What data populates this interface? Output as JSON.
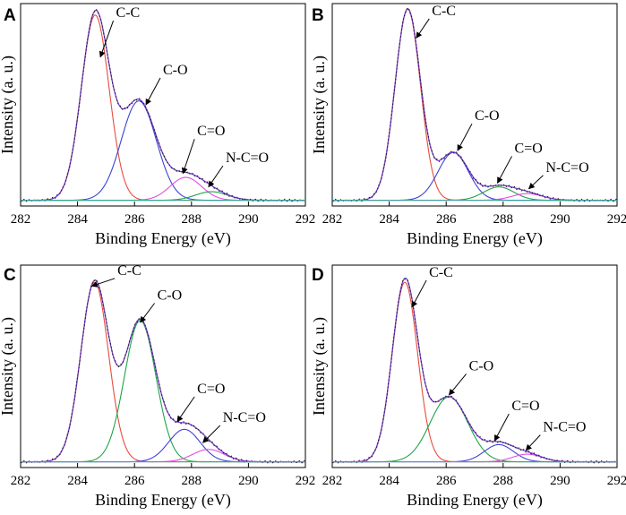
{
  "chart_data": [
    {
      "panel": "A",
      "type": "line",
      "xlabel": "Binding Energy (eV)",
      "ylabel": "Intensity (a. u.)",
      "xlim": [
        282,
        292
      ],
      "ylim": [
        0,
        1.06
      ],
      "xticks": [
        282,
        284,
        286,
        288,
        290,
        292
      ],
      "baseline": 0.03,
      "peaks": [
        {
          "name": "C-C",
          "center": 284.62,
          "fwhm": 1.15,
          "height": 0.97,
          "color": "#e74c3c"
        },
        {
          "name": "C-O",
          "center": 286.15,
          "fwhm": 1.45,
          "height": 0.52,
          "color": "#3a43d6"
        },
        {
          "name": "C=O",
          "center": 287.8,
          "fwhm": 1.3,
          "height": 0.12,
          "color": "#e24ee2"
        },
        {
          "name": "N-C=O",
          "center": 288.7,
          "fwhm": 1.3,
          "height": 0.045,
          "color": "#1fa34a"
        }
      ],
      "envelope_color": "#7a3fcf",
      "series": [
        {
          "name": "C-C",
          "x": [
            283,
            284,
            284.6,
            285.2,
            286
          ],
          "values": [
            0.08,
            0.72,
            1.0,
            0.72,
            0.12
          ]
        },
        {
          "name": "C-O",
          "x": [
            285,
            286.2,
            287.4
          ],
          "values": [
            0.12,
            0.55,
            0.12
          ]
        },
        {
          "name": "C=O",
          "x": [
            287,
            287.8,
            288.6
          ],
          "values": [
            0.04,
            0.15,
            0.04
          ]
        },
        {
          "name": "N-C=O",
          "x": [
            288,
            288.7,
            289.5
          ],
          "values": [
            0.03,
            0.075,
            0.03
          ]
        }
      ],
      "annotations": [
        {
          "text": "C-C",
          "target": [
            284.8,
            0.78
          ],
          "label_at": [
            285.35,
            0.98
          ]
        },
        {
          "text": "C-O",
          "target": [
            286.4,
            0.53
          ],
          "label_at": [
            287.0,
            0.68
          ]
        },
        {
          "text": "C=O",
          "target": [
            287.7,
            0.17
          ],
          "label_at": [
            288.2,
            0.36
          ]
        },
        {
          "text": "N-C=O",
          "target": [
            288.6,
            0.1
          ],
          "label_at": [
            289.2,
            0.22
          ]
        }
      ]
    },
    {
      "panel": "B",
      "type": "line",
      "xlabel": "Binding Energy (eV)",
      "ylabel": "Intensity (a. u.)",
      "xlim": [
        282,
        292
      ],
      "ylim": [
        0,
        1.06
      ],
      "xticks": [
        282,
        284,
        286,
        288,
        290,
        292
      ],
      "baseline": 0.03,
      "peaks": [
        {
          "name": "C-C",
          "center": 284.65,
          "fwhm": 1.05,
          "height": 1.0,
          "color": "#e74c3c"
        },
        {
          "name": "C-O",
          "center": 286.25,
          "fwhm": 1.25,
          "height": 0.25,
          "color": "#3a43d6"
        },
        {
          "name": "C=O",
          "center": 287.85,
          "fwhm": 1.25,
          "height": 0.07,
          "color": "#1fa34a"
        },
        {
          "name": "N-C=O",
          "center": 288.85,
          "fwhm": 1.25,
          "height": 0.035,
          "color": "#e24ee2"
        }
      ],
      "envelope_color": "#7a3fcf",
      "series": [
        {
          "name": "C-C",
          "x": [
            283,
            284,
            284.65,
            285.3,
            286
          ],
          "values": [
            0.06,
            0.7,
            1.03,
            0.7,
            0.1
          ]
        },
        {
          "name": "C-O",
          "x": [
            285.3,
            286.25,
            287.2
          ],
          "values": [
            0.08,
            0.28,
            0.08
          ]
        },
        {
          "name": "C=O",
          "x": [
            287,
            287.85,
            288.7
          ],
          "values": [
            0.04,
            0.1,
            0.04
          ]
        },
        {
          "name": "N-C=O",
          "x": [
            288,
            288.85,
            289.7
          ],
          "values": [
            0.03,
            0.065,
            0.03
          ]
        }
      ],
      "annotations": [
        {
          "text": "C-C",
          "target": [
            284.95,
            0.88
          ],
          "label_at": [
            285.5,
            0.99
          ]
        },
        {
          "text": "C-O",
          "target": [
            286.4,
            0.29
          ],
          "label_at": [
            287.0,
            0.44
          ]
        },
        {
          "text": "C=O",
          "target": [
            287.8,
            0.12
          ],
          "label_at": [
            288.4,
            0.27
          ]
        },
        {
          "text": "N-C=O",
          "target": [
            288.9,
            0.09
          ],
          "label_at": [
            289.5,
            0.17
          ]
        }
      ]
    },
    {
      "panel": "C",
      "type": "line",
      "xlabel": "Binding Energy (eV)",
      "ylabel": "Intensity (a. u.)",
      "xlim": [
        282,
        292
      ],
      "ylim": [
        0,
        1.06
      ],
      "xticks": [
        282,
        284,
        286,
        288,
        290,
        292
      ],
      "baseline": 0.03,
      "peaks": [
        {
          "name": "C-C",
          "center": 284.6,
          "fwhm": 1.15,
          "height": 0.94,
          "color": "#e74c3c"
        },
        {
          "name": "C-O",
          "center": 286.2,
          "fwhm": 1.3,
          "height": 0.74,
          "color": "#1fa34a"
        },
        {
          "name": "C=O",
          "center": 287.75,
          "fwhm": 1.3,
          "height": 0.17,
          "color": "#3a43d6"
        },
        {
          "name": "N-C=O",
          "center": 288.6,
          "fwhm": 1.3,
          "height": 0.065,
          "color": "#e24ee2"
        }
      ],
      "envelope_color": "#7a3fcf",
      "series": [
        {
          "name": "C-C",
          "x": [
            283,
            284,
            284.6,
            285.2,
            286
          ],
          "values": [
            0.08,
            0.72,
            0.97,
            0.72,
            0.12
          ]
        },
        {
          "name": "C-O",
          "x": [
            285,
            286.2,
            287.4
          ],
          "values": [
            0.15,
            0.77,
            0.15
          ]
        },
        {
          "name": "C=O",
          "x": [
            287,
            287.75,
            288.5
          ],
          "values": [
            0.05,
            0.2,
            0.05
          ]
        },
        {
          "name": "N-C=O",
          "x": [
            288,
            288.6,
            289.3
          ],
          "values": [
            0.03,
            0.095,
            0.03
          ]
        }
      ],
      "annotations": [
        {
          "text": "C-C",
          "target": [
            284.5,
            0.95
          ],
          "label_at": [
            285.4,
            1.0
          ]
        },
        {
          "text": "C-O",
          "target": [
            286.2,
            0.76
          ],
          "label_at": [
            286.8,
            0.87
          ]
        },
        {
          "text": "C=O",
          "target": [
            287.5,
            0.24
          ],
          "label_at": [
            288.2,
            0.38
          ]
        },
        {
          "text": "N-C=O",
          "target": [
            288.4,
            0.13
          ],
          "label_at": [
            289.1,
            0.23
          ]
        }
      ]
    },
    {
      "panel": "D",
      "type": "line",
      "xlabel": "Binding Energy (eV)",
      "ylabel": "Intensity (a. u.)",
      "xlim": [
        282,
        292
      ],
      "ylim": [
        0,
        1.06
      ],
      "xticks": [
        282,
        284,
        286,
        288,
        290,
        292
      ],
      "baseline": 0.03,
      "peaks": [
        {
          "name": "C-C",
          "center": 284.55,
          "fwhm": 1.05,
          "height": 0.94,
          "color": "#e74c3c"
        },
        {
          "name": "C-O",
          "center": 286.1,
          "fwhm": 1.55,
          "height": 0.34,
          "color": "#1fa34a"
        },
        {
          "name": "C=O",
          "center": 287.85,
          "fwhm": 1.2,
          "height": 0.09,
          "color": "#3a43d6"
        },
        {
          "name": "N-C=O",
          "center": 288.85,
          "fwhm": 1.2,
          "height": 0.04,
          "color": "#e24ee2"
        }
      ],
      "envelope_color": "#7a3fcf",
      "series": [
        {
          "name": "C-C",
          "x": [
            283,
            284,
            284.55,
            285.1,
            286
          ],
          "values": [
            0.07,
            0.7,
            0.97,
            0.7,
            0.1
          ]
        },
        {
          "name": "C-O",
          "x": [
            284.8,
            286.1,
            287.4
          ],
          "values": [
            0.1,
            0.37,
            0.1
          ]
        },
        {
          "name": "C=O",
          "x": [
            287.1,
            287.85,
            288.6
          ],
          "values": [
            0.04,
            0.12,
            0.04
          ]
        },
        {
          "name": "N-C=O",
          "x": [
            288.2,
            288.85,
            289.5
          ],
          "values": [
            0.03,
            0.07,
            0.03
          ]
        }
      ],
      "annotations": [
        {
          "text": "C-C",
          "target": [
            284.8,
            0.84
          ],
          "label_at": [
            285.4,
            0.99
          ]
        },
        {
          "text": "C-O",
          "target": [
            286.1,
            0.38
          ],
          "label_at": [
            286.8,
            0.5
          ]
        },
        {
          "text": "C=O",
          "target": [
            287.7,
            0.14
          ],
          "label_at": [
            288.3,
            0.29
          ]
        },
        {
          "text": "N-C=O",
          "target": [
            288.8,
            0.09
          ],
          "label_at": [
            289.4,
            0.18
          ]
        }
      ]
    }
  ]
}
